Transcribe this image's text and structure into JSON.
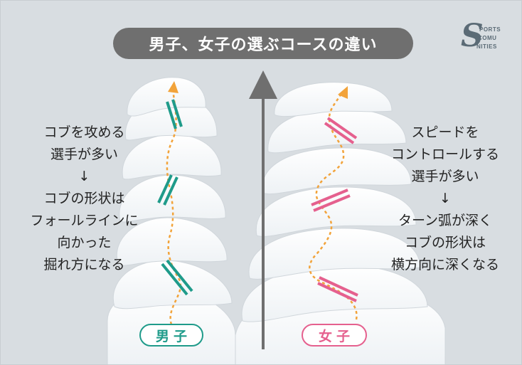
{
  "title": "男子、女子の選ぶコースの違い",
  "logo": {
    "initial": "S",
    "line1": "PORTS",
    "line2": "COMU",
    "line3": "NITIES"
  },
  "left_description": [
    "コブを攻める",
    "選手が多い",
    "↓",
    "コブの形状は",
    "フォールラインに",
    "向かった",
    "掘れ方になる"
  ],
  "right_description": [
    "スピードを",
    "コントロールする",
    "選手が多い",
    "↓",
    "ターン弧が深く",
    "コブの形状は",
    "横方向に深くなる"
  ],
  "badges": {
    "boys": "男子",
    "girls": "女子"
  },
  "colors": {
    "background": "#d8dde1",
    "mogul": "#ffffff",
    "path": "#f2a33a",
    "boys_marker": "#1f9b8a",
    "girls_marker": "#e5608e",
    "axis_arrow": "#6f6f6f",
    "title_bg": "#6f6f6f"
  }
}
